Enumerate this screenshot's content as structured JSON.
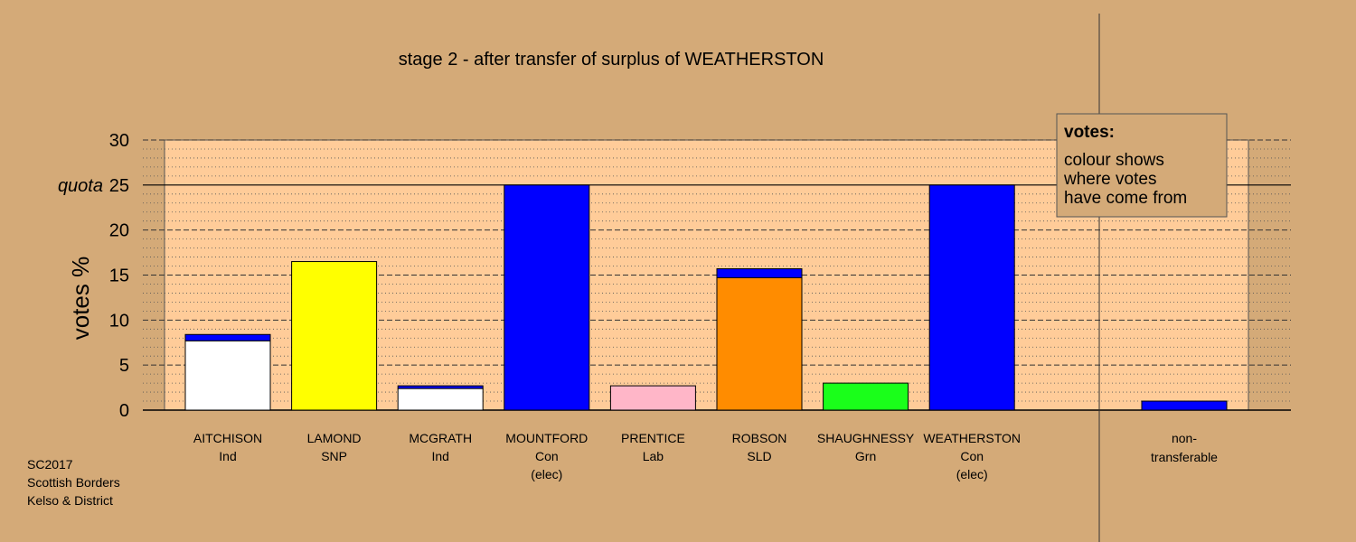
{
  "chart_data": {
    "type": "bar",
    "title": "stage 2 - after transfer of surplus of WEATHERSTON",
    "ylabel": "votes %",
    "ylim": [
      0,
      30
    ],
    "yticks": [
      "0",
      "5",
      "10",
      "15",
      "20",
      "25",
      "30"
    ],
    "quota": {
      "label": "quota",
      "value": 25
    },
    "grid": "dashed major / dotted minor",
    "categories": [
      {
        "name": "AITCHISON",
        "party": "Ind",
        "status": ""
      },
      {
        "name": "LAMOND",
        "party": "SNP",
        "status": ""
      },
      {
        "name": "MCGRATH",
        "party": "Ind",
        "status": ""
      },
      {
        "name": "MOUNTFORD",
        "party": "Con",
        "status": "(elec)"
      },
      {
        "name": "PRENTICE",
        "party": "Lab",
        "status": ""
      },
      {
        "name": "ROBSON",
        "party": "SLD",
        "status": ""
      },
      {
        "name": "SHAUGHNESSY",
        "party": "Grn",
        "status": ""
      },
      {
        "name": "WEATHERSTON",
        "party": "Con",
        "status": "(elec)"
      }
    ],
    "bars": [
      {
        "segments": [
          {
            "value": 7.7,
            "color": "#ffffff"
          },
          {
            "value": 0.7,
            "color": "#0000ff"
          }
        ]
      },
      {
        "segments": [
          {
            "value": 16.5,
            "color": "#ffff00"
          }
        ]
      },
      {
        "segments": [
          {
            "value": 2.4,
            "color": "#ffffff"
          },
          {
            "value": 0.3,
            "color": "#0000ff"
          }
        ]
      },
      {
        "segments": [
          {
            "value": 25.0,
            "color": "#0000ff"
          }
        ]
      },
      {
        "segments": [
          {
            "value": 2.7,
            "color": "#ffb6c8"
          }
        ]
      },
      {
        "segments": [
          {
            "value": 14.7,
            "color": "#ff8c00"
          },
          {
            "value": 1.0,
            "color": "#0000ff"
          }
        ]
      },
      {
        "segments": [
          {
            "value": 3.0,
            "color": "#1aff1a"
          }
        ]
      },
      {
        "segments": [
          {
            "value": 25.0,
            "color": "#0000ff"
          }
        ]
      }
    ],
    "nontransferable": {
      "label_lines": [
        "non-",
        "transferable"
      ],
      "value": 1.0,
      "color": "#0000ff"
    },
    "legend": {
      "title": "votes:",
      "lines": [
        "colour shows",
        "where votes",
        "have come from"
      ],
      "position": "top-right"
    },
    "colors": {
      "background": "#d4aa78",
      "plot_area": "#ffcc99"
    }
  },
  "footer": {
    "lines": [
      "SC2017",
      "Scottish Borders",
      "Kelso & District"
    ]
  }
}
